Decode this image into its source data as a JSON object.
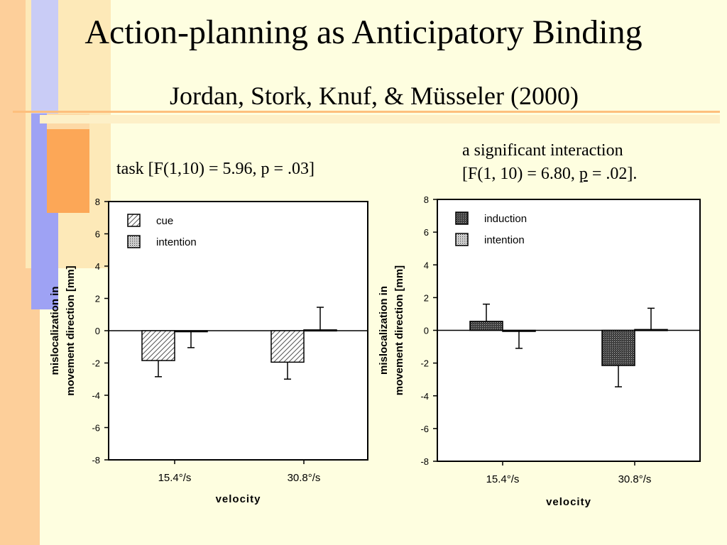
{
  "slide": {
    "title": "Action-planning as Anticipatory Binding",
    "subtitle": "Jordan, Stork, Knuf, & Müsseler (2000)",
    "left_stat": "task [F(1,10) = 5.96, p = .03]",
    "right_stat_line1": "a significant interaction",
    "right_stat_line2_a": "[F(1, 10) = 6.80, ",
    "right_stat_line2_p": "p",
    "right_stat_line2_b": " = .02]."
  },
  "colors": {
    "background": "#fefee0",
    "orange": "#fdbf7d",
    "orange_dark": "#fc9e4c",
    "lavender": "#b6b9f5",
    "blue": "#8a8ef4",
    "bar_fill": "#ffffff"
  },
  "chart_data": [
    {
      "type": "bar",
      "categories": [
        "15.4°/s",
        "30.8°/s"
      ],
      "series": [
        {
          "name": "cue",
          "pattern": "diagonal-hatch",
          "values": [
            -1.85,
            -1.95
          ],
          "errors": [
            1.0,
            1.05
          ]
        },
        {
          "name": "intention",
          "pattern": "dots",
          "values": [
            -0.05,
            0.05
          ],
          "errors": [
            1.0,
            1.4
          ]
        }
      ],
      "xlabel": "velocity",
      "ylabel_line1": "mislocalization in",
      "ylabel_line2": "movement direction [mm]",
      "ylim": [
        -8,
        8
      ],
      "yticks": [
        "-8",
        "-6",
        "-4",
        "-2",
        "0",
        "2",
        "4",
        "6",
        "8"
      ],
      "legend_position": "top-left",
      "grid": false
    },
    {
      "type": "bar",
      "categories": [
        "15.4°/s",
        "30.8°/s"
      ],
      "series": [
        {
          "name": "induction",
          "pattern": "dark-crosshatch",
          "values": [
            0.55,
            -2.15
          ],
          "errors": [
            1.05,
            1.3
          ]
        },
        {
          "name": "intention",
          "pattern": "dots",
          "values": [
            -0.05,
            0.05
          ],
          "errors": [
            1.05,
            1.3
          ]
        }
      ],
      "xlabel": "velocity",
      "ylabel_line1": "mislocalization in",
      "ylabel_line2": "movement direction [mm]",
      "ylim": [
        -8,
        8
      ],
      "yticks": [
        "-8",
        "-6",
        "-4",
        "-2",
        "0",
        "2",
        "4",
        "6",
        "8"
      ],
      "legend_position": "top-left",
      "grid": false
    }
  ]
}
